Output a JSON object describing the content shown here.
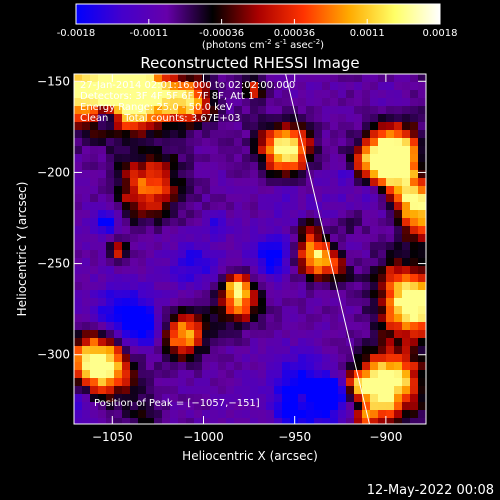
{
  "colorbar": {
    "ticks": [
      "-0.0018",
      "-0.0011",
      "-0.00036",
      "0.00036",
      "0.0011",
      "0.0018"
    ],
    "units": "(photons cm",
    "units_sup1": "-2",
    "units_mid": " s",
    "units_sup2": "-1",
    "units_end": " asec",
    "units_sup3": "-2",
    "units_close": ")",
    "colormap": [
      "#0000ff",
      "#4400cc",
      "#6600aa",
      "#000000",
      "#aa0000",
      "#ff3300",
      "#ffaa00",
      "#ffff66",
      "#ffffff"
    ]
  },
  "chart_data": {
    "type": "heatmap",
    "title": "Reconstructed RHESSI Image",
    "xlabel": "Heliocentric X (arcsec)",
    "ylabel": "Heliocentric Y (arcsec)",
    "xlim": [
      -1071,
      -878
    ],
    "ylim": [
      -338,
      -146
    ],
    "x_ticks": [
      -1050,
      -1000,
      -950,
      -900
    ],
    "y_ticks": [
      -150,
      -200,
      -250,
      -300
    ],
    "x_tick_labels": [
      "−1050",
      "−1000",
      "−950",
      "−900"
    ],
    "y_tick_labels": [
      "−150",
      "−200",
      "−250",
      "−300"
    ],
    "annotations": [
      "27-Jan-2014 02:01:16.000 to 02:02:00.000",
      "Detectors: 3F 4F 5F 6F 7F 8F, Att 1",
      "Energy Range: 25.0 - 50.0 keV",
      "Clean     Total counts: 3.67E+03"
    ],
    "peak_label": "Position of Peak = [−1057,−151]",
    "peak": [
      -1057,
      -151
    ],
    "limb_line": [
      [
        -955,
        -146
      ],
      [
        -909,
        -338
      ]
    ],
    "grid": false
  },
  "footer": {
    "date": "12-May-2022 00:08"
  }
}
